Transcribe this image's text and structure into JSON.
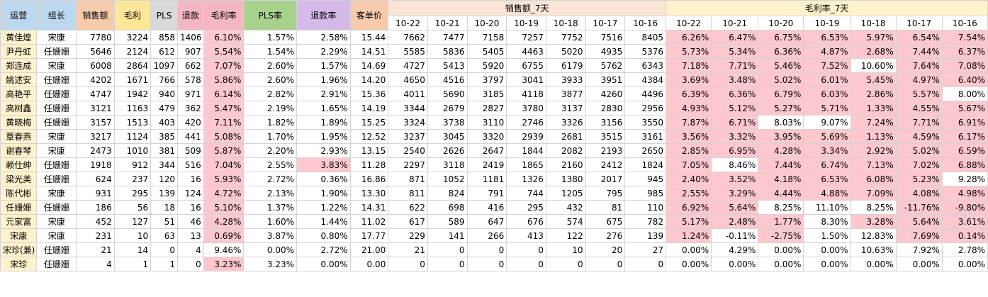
{
  "headers": {
    "operator": "运营",
    "leader": "组长",
    "sales": "销售额",
    "gross": "毛利",
    "pls": "PLS",
    "refund": "退款",
    "margin_rate": "毛利率",
    "pls_rate": "PLS率",
    "refund_rate": "退款率",
    "avg_price": "客单价",
    "sales_7d": "销售额_7天",
    "margin_7d": "毛利率_7天"
  },
  "dates": [
    "10-22",
    "10-21",
    "10-20",
    "10-19",
    "10-18",
    "10-17",
    "10-16"
  ],
  "colors": {
    "pink_highlight": "#ffc7ce",
    "operator_col": "#fff2cc"
  },
  "rows": [
    {
      "op": "黄佳煌",
      "leader": "宋康",
      "sales": "7780",
      "gross": "3224",
      "pls": "858",
      "refund": "1406",
      "mr": "6.10%",
      "plsr": "1.57%",
      "rr": "2.58%",
      "avg": "15.44",
      "s7": [
        "7662",
        "7477",
        "7158",
        "7257",
        "7752",
        "7516",
        "8405"
      ],
      "m7": [
        "6.26%",
        "6.47%",
        "6.75%",
        "6.53%",
        "5.97%",
        "6.54%",
        "7.54%"
      ]
    },
    {
      "op": "尹丹虹",
      "leader": "任姗姗",
      "sales": "5646",
      "gross": "2124",
      "pls": "612",
      "refund": "907",
      "mr": "5.54%",
      "plsr": "1.54%",
      "rr": "2.29%",
      "avg": "14.51",
      "s7": [
        "5585",
        "5836",
        "5405",
        "4463",
        "5020",
        "4935",
        "5376"
      ],
      "m7": [
        "5.73%",
        "5.34%",
        "6.36%",
        "4.87%",
        "2.68%",
        "7.44%",
        "6.37%"
      ]
    },
    {
      "op": "郑连成",
      "leader": "宋康",
      "sales": "6008",
      "gross": "2864",
      "pls": "1097",
      "refund": "662",
      "mr": "7.07%",
      "plsr": "2.60%",
      "rr": "1.57%",
      "avg": "14.69",
      "s7": [
        "4727",
        "5413",
        "5920",
        "6755",
        "6179",
        "5762",
        "6343"
      ],
      "m7": [
        "7.18%",
        "7.71%",
        "5.46%",
        "7.52%",
        "10.60%",
        "7.64%",
        "7.08%"
      ]
    },
    {
      "op": "姚述安",
      "leader": "任姗姗",
      "sales": "4202",
      "gross": "1671",
      "pls": "766",
      "refund": "578",
      "mr": "5.86%",
      "plsr": "2.60%",
      "rr": "1.96%",
      "avg": "14.20",
      "s7": [
        "4650",
        "4516",
        "3797",
        "3041",
        "3933",
        "3951",
        "4384"
      ],
      "m7": [
        "3.69%",
        "3.48%",
        "5.02%",
        "6.01%",
        "5.45%",
        "4.97%",
        "6.40%"
      ]
    },
    {
      "op": "高艳平",
      "leader": "任姗姗",
      "sales": "4747",
      "gross": "1942",
      "pls": "940",
      "refund": "971",
      "mr": "6.14%",
      "plsr": "2.82%",
      "rr": "2.91%",
      "avg": "15.36",
      "s7": [
        "4011",
        "5690",
        "3185",
        "4118",
        "3877",
        "4260",
        "4496"
      ],
      "m7": [
        "6.39%",
        "6.36%",
        "6.79%",
        "6.03%",
        "2.86%",
        "5.57%",
        "8.00%"
      ]
    },
    {
      "op": "高树鑫",
      "leader": "任姗姗",
      "sales": "3121",
      "gross": "1163",
      "pls": "479",
      "refund": "362",
      "mr": "5.47%",
      "plsr": "2.19%",
      "rr": "1.65%",
      "avg": "14.19",
      "s7": [
        "3344",
        "2679",
        "2827",
        "3780",
        "3137",
        "2830",
        "2956"
      ],
      "m7": [
        "4.93%",
        "5.12%",
        "5.27%",
        "5.71%",
        "1.33%",
        "4.55%",
        "5.67%"
      ]
    },
    {
      "op": "黄晓梅",
      "leader": "任姗姗",
      "sales": "3157",
      "gross": "1513",
      "pls": "403",
      "refund": "420",
      "mr": "7.11%",
      "plsr": "1.82%",
      "rr": "1.89%",
      "avg": "15.25",
      "s7": [
        "3324",
        "3738",
        "3110",
        "2746",
        "3326",
        "3156",
        "3550"
      ],
      "m7": [
        "7.87%",
        "6.71%",
        "8.03%",
        "9.07%",
        "7.24%",
        "7.71%",
        "6.91%"
      ]
    },
    {
      "op": "覃春燕",
      "leader": "宋康",
      "sales": "3217",
      "gross": "1124",
      "pls": "385",
      "refund": "441",
      "mr": "5.08%",
      "plsr": "1.70%",
      "rr": "1.95%",
      "avg": "12.52",
      "s7": [
        "3237",
        "3045",
        "3320",
        "2939",
        "2681",
        "3515",
        "3161"
      ],
      "m7": [
        "3.56%",
        "3.32%",
        "3.95%",
        "5.69%",
        "1.13%",
        "4.59%",
        "6.17%"
      ]
    },
    {
      "op": "谢春琴",
      "leader": "宋康",
      "sales": "2473",
      "gross": "1010",
      "pls": "381",
      "refund": "509",
      "mr": "5.87%",
      "plsr": "2.20%",
      "rr": "2.93%",
      "avg": "13.15",
      "s7": [
        "2540",
        "2626",
        "2647",
        "1844",
        "2082",
        "2193",
        "2650"
      ],
      "m7": [
        "2.85%",
        "6.95%",
        "4.28%",
        "3.34%",
        "2.92%",
        "5.02%",
        "6.59%"
      ]
    },
    {
      "op": "赖仕绅",
      "leader": "任姗姗",
      "sales": "1918",
      "gross": "912",
      "pls": "344",
      "refund": "516",
      "mr": "7.04%",
      "plsr": "2.55%",
      "rr": "3.83%",
      "avg": "11.28",
      "s7": [
        "2297",
        "3118",
        "2419",
        "1865",
        "2160",
        "2412",
        "1824"
      ],
      "m7": [
        "7.05%",
        "8.46%",
        "7.44%",
        "6.74%",
        "7.13%",
        "7.02%",
        "6.88%"
      ]
    },
    {
      "op": "梁光美",
      "leader": "任姗姗",
      "sales": "624",
      "gross": "237",
      "pls": "120",
      "refund": "16",
      "mr": "5.93%",
      "plsr": "2.72%",
      "rr": "0.36%",
      "avg": "16.86",
      "s7": [
        "871",
        "1052",
        "1181",
        "1326",
        "1380",
        "2017",
        "945"
      ],
      "m7": [
        "2.40%",
        "3.52%",
        "4.18%",
        "6.53%",
        "6.08%",
        "5.23%",
        "9.28%"
      ]
    },
    {
      "op": "陈代彬",
      "leader": "宋康",
      "sales": "931",
      "gross": "295",
      "pls": "139",
      "refund": "124",
      "mr": "4.72%",
      "plsr": "2.13%",
      "rr": "1.90%",
      "avg": "13.30",
      "s7": [
        "811",
        "824",
        "791",
        "744",
        "1205",
        "795",
        "985"
      ],
      "m7": [
        "2.55%",
        "3.29%",
        "4.44%",
        "4.88%",
        "7.09%",
        "4.08%",
        "4.98%"
      ]
    },
    {
      "op": "任姗姗",
      "leader": "任姗姗",
      "sales": "186",
      "gross": "56",
      "pls": "18",
      "refund": "16",
      "mr": "5.10%",
      "plsr": "1.37%",
      "rr": "1.22%",
      "avg": "14.31",
      "s7": [
        "622",
        "698",
        "416",
        "295",
        "432",
        "81",
        "110"
      ],
      "m7": [
        "6.92%",
        "5.64%",
        "8.25%",
        "11.10%",
        "8.25%",
        "-11.76%",
        "-9.80%"
      ]
    },
    {
      "op": "元家富",
      "leader": "宋康",
      "sales": "452",
      "gross": "127",
      "pls": "51",
      "refund": "46",
      "mr": "4.28%",
      "plsr": "1.60%",
      "rr": "1.44%",
      "avg": "11.02",
      "s7": [
        "617",
        "589",
        "647",
        "676",
        "574",
        "675",
        "782"
      ],
      "m7": [
        "5.17%",
        "2.48%",
        "1.77%",
        "8.30%",
        "3.28%",
        "5.64%",
        "3.61%"
      ]
    },
    {
      "op": "宋康",
      "leader": "宋康",
      "sales": "231",
      "gross": "10",
      "pls": "63",
      "refund": "13",
      "mr": "0.69%",
      "plsr": "3.87%",
      "rr": "0.80%",
      "avg": "17.77",
      "s7": [
        "229",
        "141",
        "266",
        "413",
        "122",
        "276",
        "139"
      ],
      "m7": [
        "1.24%",
        "-0.11%",
        "-2.75%",
        "1.50%",
        "12.83%",
        "7.69%",
        "0.14%"
      ]
    },
    {
      "op": "宋珍(兼)",
      "leader": "任姗姗",
      "sales": "21",
      "gross": "14",
      "pls": "0",
      "refund": "4",
      "mr": "9.46%",
      "plsr": "0.00%",
      "rr": "2.72%",
      "avg": "21.00",
      "s7": [
        "21",
        "0",
        "0",
        "0",
        "10",
        "20",
        "27"
      ],
      "m7": [
        "0.00%",
        "4.29%",
        "0.00%",
        "0.00%",
        "10.63%",
        "7.92%",
        "2.78%"
      ]
    },
    {
      "op": "宋珍",
      "leader": "任姗姗",
      "sales": "4",
      "gross": "1",
      "pls": "1",
      "refund": "0",
      "mr": "3.23%",
      "plsr": "3.23%",
      "rr": "0.00%",
      "avg": "0.00",
      "s7": [
        "0",
        "0",
        "0",
        "0",
        "0",
        "0",
        "0"
      ],
      "m7": [
        "0.00%",
        "0.00%",
        "0.00%",
        "0.00%",
        "0.00%",
        "0.00%",
        "0.00%"
      ]
    }
  ]
}
